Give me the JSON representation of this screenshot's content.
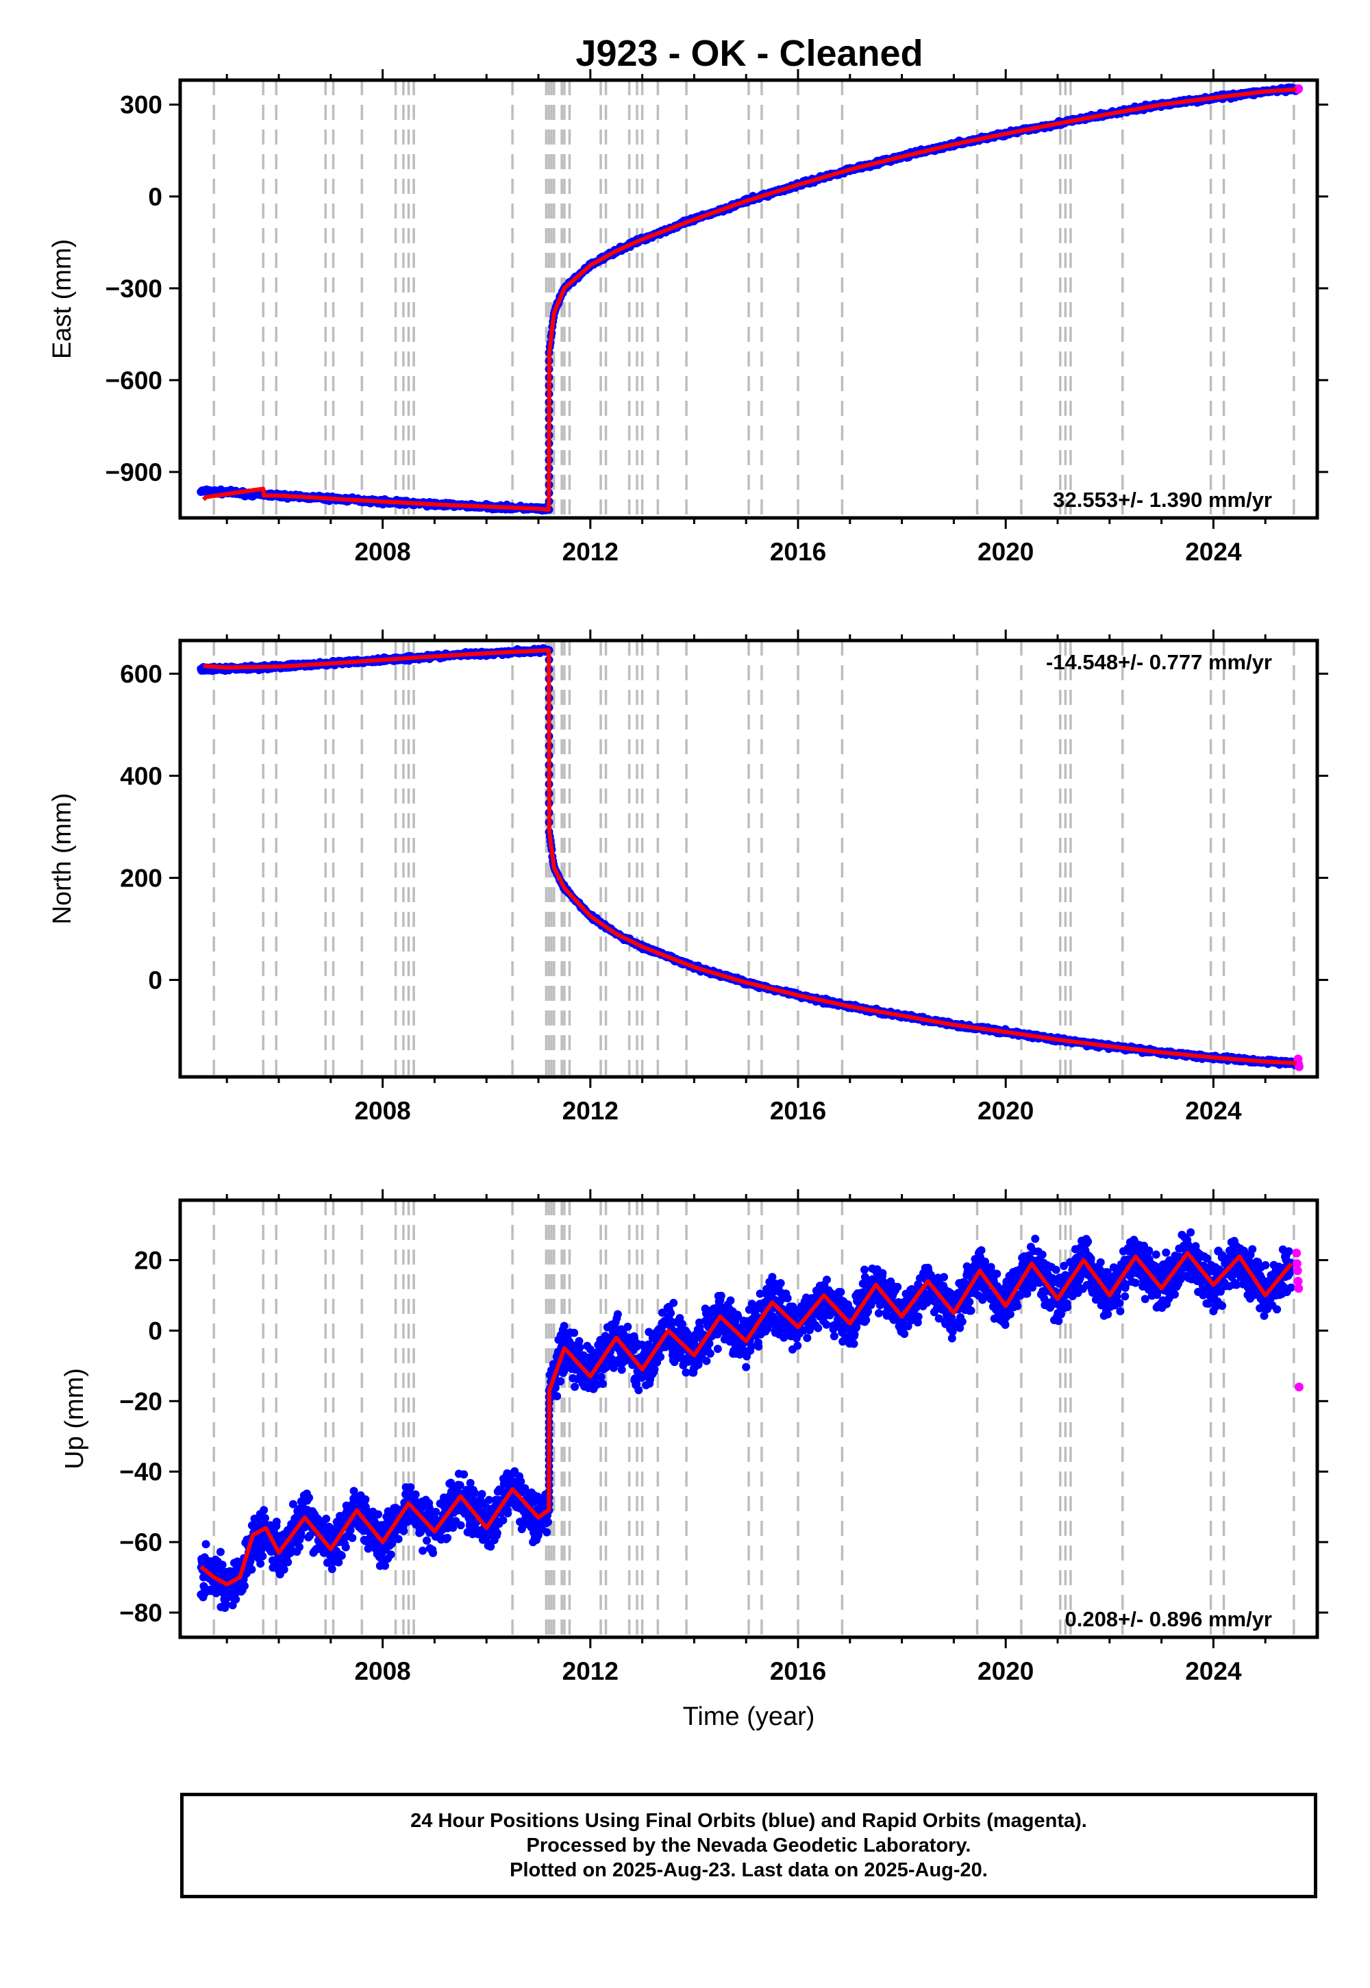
{
  "title": "J923  - OK - Cleaned",
  "footer": {
    "line1": "24 Hour Positions Using Final Orbits (blue) and Rapid Orbits (magenta).",
    "line2": "Processed by the Nevada Geodetic Laboratory.",
    "line3": "Plotted on 2025-Aug-23. Last data on 2025-Aug-20."
  },
  "colors": {
    "final_orbits": "#0000ff",
    "rapid_orbits": "#ff00ff",
    "model": "#ff0000",
    "event_lines": "#bdbdbd"
  },
  "chart_data": [
    {
      "type": "scatter",
      "panel": "east",
      "ylabel": "East (mm)",
      "xlabel": "",
      "xlim": [
        2004.1,
        2026.0
      ],
      "ylim": [
        -1050,
        380
      ],
      "yticks": [
        300,
        0,
        -300,
        -600,
        -900
      ],
      "xticks": [
        2008,
        2012,
        2016,
        2020,
        2024
      ],
      "rate_label": "32.553+/- 1.390 mm/yr",
      "rate_position": "bottom-right",
      "series": [
        {
          "name": "Final Orbits",
          "color": "#0000ff",
          "x": [
            2004.5,
            2005.0,
            2005.5,
            2006.0,
            2007.0,
            2008.0,
            2009.0,
            2010.0,
            2011.0,
            2011.19,
            2011.21,
            2011.3,
            2011.5,
            2012.0,
            2012.5,
            2013.0,
            2014.0,
            2015.0,
            2016.0,
            2017.0,
            2018.0,
            2019.0,
            2020.0,
            2021.0,
            2022.0,
            2023.0,
            2024.0,
            2025.0,
            2025.6
          ],
          "y": [
            -963,
            -966,
            -972,
            -977,
            -987,
            -997,
            -1006,
            -1013,
            -1020,
            -1023,
            -510,
            -380,
            -300,
            -225,
            -178,
            -140,
            -75,
            -15,
            38,
            88,
            130,
            170,
            205,
            238,
            270,
            300,
            322,
            343,
            350
          ]
        },
        {
          "name": "Rapid Orbits",
          "color": "#ff00ff",
          "x": [
            2025.63,
            2025.64
          ],
          "y": [
            350,
            352
          ]
        }
      ],
      "model": {
        "color": "#ff0000",
        "x": [
          2004.55,
          2004.6,
          2005.7,
          2005.71,
          2006.0,
          2007.0,
          2008.0,
          2009.0,
          2010.0,
          2011.0,
          2011.19,
          2011.2,
          2011.21,
          2011.3,
          2011.5,
          2012.0,
          2012.5,
          2013.0,
          2014.0,
          2015.0,
          2016.0,
          2017.0,
          2018.0,
          2019.0,
          2020.0,
          2021.0,
          2022.0,
          2023.0,
          2024.0,
          2025.0,
          2025.6
        ],
        "y": [
          -990,
          -982,
          -955,
          -977,
          -977,
          -987,
          -997,
          -1006,
          -1013,
          -1020,
          -1023,
          -1023,
          -510,
          -380,
          -300,
          -225,
          -178,
          -140,
          -75,
          -15,
          38,
          88,
          130,
          170,
          205,
          238,
          270,
          300,
          322,
          343,
          350
        ]
      }
    },
    {
      "type": "scatter",
      "panel": "north",
      "ylabel": "North (mm)",
      "xlabel": "",
      "xlim": [
        2004.1,
        2026.0
      ],
      "ylim": [
        -190,
        665
      ],
      "yticks": [
        600,
        400,
        200,
        0
      ],
      "xticks": [
        2008,
        2012,
        2016,
        2020,
        2024
      ],
      "rate_label": "-14.548+/- 0.777 mm/yr",
      "rate_position": "top-right",
      "series": [
        {
          "name": "Final Orbits",
          "color": "#0000ff",
          "x": [
            2004.5,
            2005.0,
            2006.0,
            2007.0,
            2008.0,
            2009.0,
            2010.0,
            2011.0,
            2011.19,
            2011.21,
            2011.3,
            2011.5,
            2012.0,
            2012.5,
            2013.0,
            2014.0,
            2015.0,
            2016.0,
            2017.0,
            2018.0,
            2019.0,
            2020.0,
            2021.0,
            2022.0,
            2023.0,
            2024.0,
            2025.0,
            2025.6
          ],
          "y": [
            608,
            610,
            614,
            620,
            627,
            634,
            640,
            645,
            646,
            290,
            220,
            180,
            125,
            90,
            65,
            25,
            -5,
            -30,
            -52,
            -70,
            -88,
            -102,
            -117,
            -130,
            -142,
            -152,
            -160,
            -163
          ]
        },
        {
          "name": "Rapid Orbits",
          "color": "#ff00ff",
          "x": [
            2025.63,
            2025.64,
            2025.65
          ],
          "y": [
            -155,
            -165,
            -170
          ]
        }
      ],
      "model": {
        "color": "#ff0000",
        "x": [
          2004.55,
          2005.0,
          2006.0,
          2007.0,
          2008.0,
          2009.0,
          2010.0,
          2011.0,
          2011.19,
          2011.2,
          2011.21,
          2011.3,
          2011.5,
          2012.0,
          2012.5,
          2013.0,
          2014.0,
          2015.0,
          2016.0,
          2017.0,
          2018.0,
          2019.0,
          2020.0,
          2021.0,
          2022.0,
          2023.0,
          2024.0,
          2025.0,
          2025.6
        ],
        "y": [
          615,
          612,
          614,
          620,
          627,
          634,
          640,
          645,
          646,
          646,
          290,
          220,
          180,
          125,
          90,
          65,
          25,
          -5,
          -30,
          -52,
          -70,
          -88,
          -102,
          -117,
          -130,
          -142,
          -152,
          -160,
          -163
        ]
      }
    },
    {
      "type": "scatter",
      "panel": "up",
      "ylabel": "Up (mm)",
      "xlabel": "Time (year)",
      "xlim": [
        2004.1,
        2026.0
      ],
      "ylim": [
        -87,
        37
      ],
      "yticks": [
        20,
        0,
        -20,
        -40,
        -60,
        -80
      ],
      "xticks": [
        2008,
        2012,
        2016,
        2020,
        2024
      ],
      "rate_label": "0.208+/- 0.896 mm/yr",
      "rate_position": "bottom-right",
      "series": [
        {
          "name": "Final Orbits",
          "color": "#0000ff",
          "x": [
            2004.5,
            2004.75,
            2005.0,
            2005.25,
            2005.5,
            2005.75,
            2006.0,
            2006.5,
            2007.0,
            2007.5,
            2008.0,
            2008.5,
            2009.0,
            2009.5,
            2010.0,
            2010.5,
            2011.0,
            2011.19,
            2011.21,
            2011.5,
            2012.0,
            2012.5,
            2013.0,
            2013.5,
            2014.0,
            2014.5,
            2015.0,
            2015.5,
            2016.0,
            2016.5,
            2017.0,
            2017.5,
            2018.0,
            2018.5,
            2019.0,
            2019.5,
            2020.0,
            2020.5,
            2021.0,
            2021.5,
            2022.0,
            2022.5,
            2023.0,
            2023.5,
            2024.0,
            2024.5,
            2025.0,
            2025.5
          ],
          "y": [
            -68,
            -70,
            -72,
            -70,
            -60,
            -56,
            -63,
            -53,
            -62,
            -51,
            -60,
            -49,
            -57,
            -47,
            -56,
            -45,
            -53,
            -51,
            -17,
            -5,
            -13,
            -2,
            -11,
            0,
            -7,
            4,
            -3,
            8,
            1,
            10,
            2,
            13,
            4,
            14,
            5,
            17,
            7,
            19,
            9,
            20,
            10,
            21,
            12,
            22,
            13,
            21,
            10,
            19
          ]
        },
        {
          "name": "Rapid Orbits",
          "color": "#ff00ff",
          "x": [
            2025.6,
            2025.61,
            2025.62,
            2025.63,
            2025.64,
            2025.65
          ],
          "y": [
            22,
            19,
            17,
            14,
            12,
            -16
          ]
        }
      ],
      "model": {
        "color": "#ff0000",
        "x": [
          2004.5,
          2004.75,
          2005.0,
          2005.25,
          2005.5,
          2005.75,
          2006.0,
          2006.5,
          2007.0,
          2007.5,
          2008.0,
          2008.5,
          2009.0,
          2009.5,
          2010.0,
          2010.5,
          2011.0,
          2011.19,
          2011.2,
          2011.21,
          2011.5,
          2012.0,
          2012.5,
          2013.0,
          2013.5,
          2014.0,
          2014.5,
          2015.0,
          2015.5,
          2016.0,
          2016.5,
          2017.0,
          2017.5,
          2018.0,
          2018.5,
          2019.0,
          2019.5,
          2020.0,
          2020.5,
          2021.0,
          2021.5,
          2022.0,
          2022.5,
          2023.0,
          2023.5,
          2024.0,
          2024.5,
          2025.0,
          2025.5
        ],
        "y": [
          -67,
          -70,
          -72,
          -70,
          -58,
          -56,
          -63,
          -53,
          -62,
          -51,
          -60,
          -49,
          -57,
          -47,
          -56,
          -45,
          -53,
          -51,
          -51,
          -17,
          -5,
          -13,
          -2,
          -11,
          0,
          -7,
          4,
          -3,
          8,
          1,
          10,
          2,
          13,
          4,
          14,
          5,
          17,
          7,
          19,
          9,
          20,
          10,
          21,
          12,
          22,
          13,
          21,
          10,
          19
        ]
      }
    }
  ],
  "event_lines_x": [
    2004.75,
    2005.7,
    2005.95,
    2006.9,
    2007.05,
    2007.6,
    2008.25,
    2008.4,
    2008.5,
    2008.6,
    2010.5,
    2011.15,
    2011.2,
    2011.25,
    2011.3,
    2011.45,
    2011.5,
    2011.6,
    2012.2,
    2012.3,
    2012.75,
    2012.9,
    2013.0,
    2013.3,
    2013.85,
    2015.05,
    2015.3,
    2016.0,
    2016.85,
    2019.45,
    2020.3,
    2021.05,
    2021.15,
    2021.25,
    2022.25,
    2023.95,
    2024.2,
    2025.55
  ]
}
